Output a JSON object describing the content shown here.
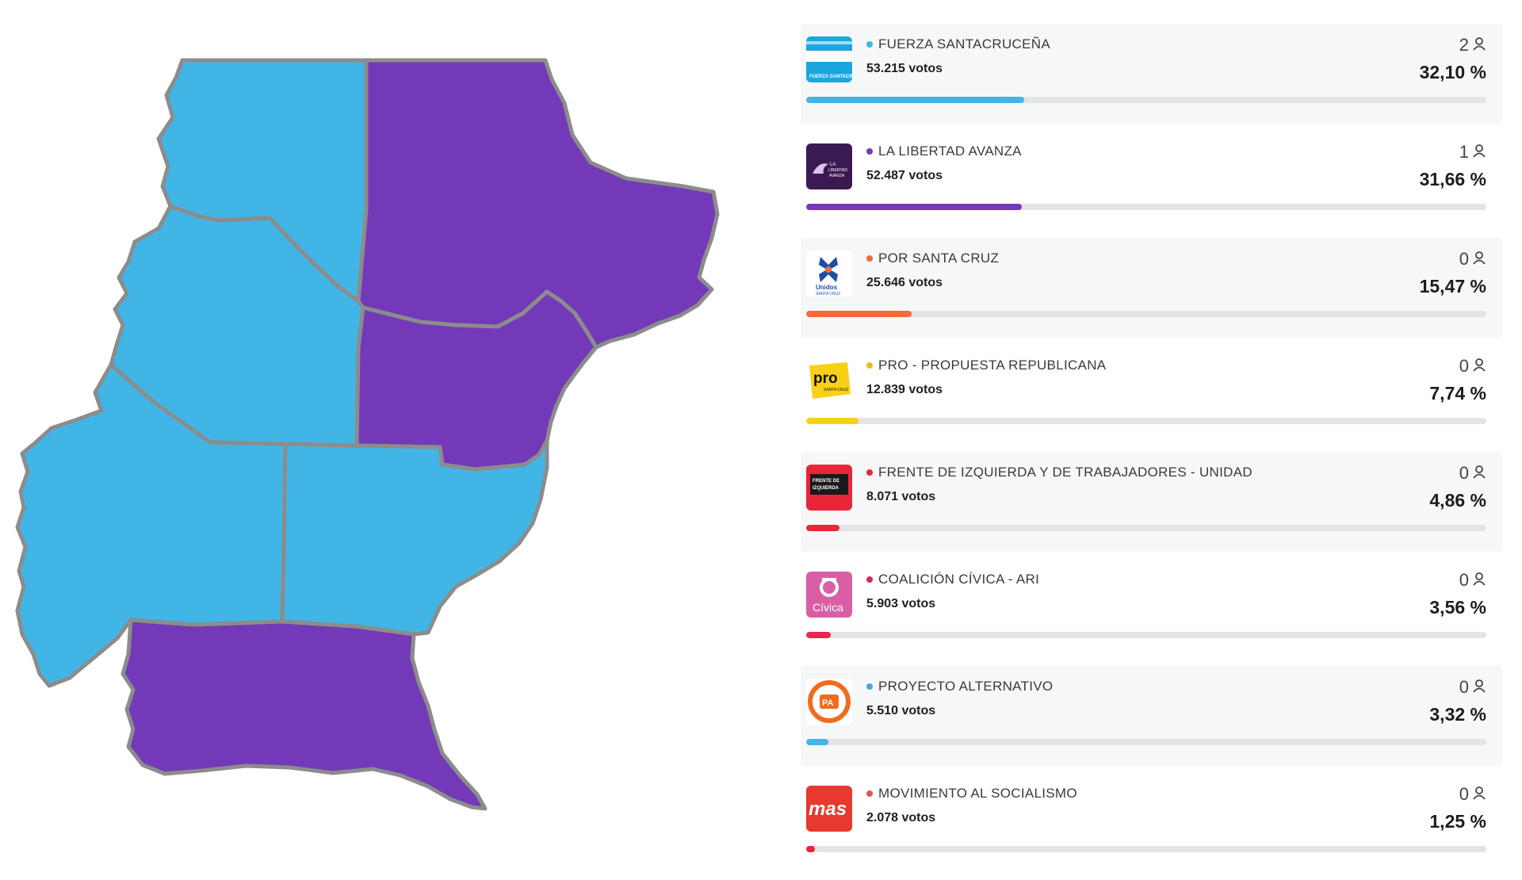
{
  "map": {
    "colors": {
      "fuerza": "#41b6e6",
      "libertad": "#7439b8",
      "border": "#8c8c8c"
    },
    "departments": [
      {
        "key": "lago-buenos-aires",
        "winner": "fuerza"
      },
      {
        "key": "deseado",
        "winner": "libertad"
      },
      {
        "key": "rio-chico",
        "winner": "fuerza"
      },
      {
        "key": "magallanes",
        "winner": "libertad"
      },
      {
        "key": "lago-argentino",
        "winner": "fuerza"
      },
      {
        "key": "corpen-aike",
        "winner": "fuerza"
      },
      {
        "key": "guer-aike",
        "winner": "libertad"
      }
    ]
  },
  "results": [
    {
      "name": "FUERZA SANTACRUCEÑA",
      "votes": "53.215 votos",
      "seats": "2",
      "pct": "32,10 %",
      "share": 32.1,
      "color": "#41b6e6",
      "dot": "#41b6e6",
      "logo_icon": "fuerza-santacrucena-flag-logo",
      "logo_text": "FUERZA SANTACRUCEÑA",
      "shade": true
    },
    {
      "name": "LA LIBERTAD AVANZA",
      "votes": "52.487 votos",
      "seats": "1",
      "pct": "31,66 %",
      "share": 31.66,
      "color": "#7439b8",
      "dot": "#7439b8",
      "logo_icon": "la-libertad-avanza-lion-logo",
      "logo_text": "LA LIBERTAD AVANZA",
      "shade": false
    },
    {
      "name": "POR SANTA CRUZ",
      "votes": "25.646 votos",
      "seats": "0",
      "pct": "15,47 %",
      "share": 15.47,
      "color": "#f26b3a",
      "dot": "#f26b3a",
      "logo_icon": "unidos-santa-cruz-logo",
      "logo_text": "Unidos SANTA CRUZ",
      "shade": true
    },
    {
      "name": "PRO - PROPUESTA REPUBLICANA",
      "votes": "12.839 votos",
      "seats": "0",
      "pct": "7,74 %",
      "share": 7.74,
      "color": "#f8d117",
      "dot": "#e6c01a",
      "logo_icon": "pro-santa-cruz-logo",
      "logo_text": "pro SANTA CRUZ",
      "shade": false
    },
    {
      "name": "FRENTE DE IZQUIERDA Y DE TRABAJADORES - UNIDAD",
      "votes": "8.071 votos",
      "seats": "0",
      "pct": "4,86 %",
      "share": 4.86,
      "color": "#e8263a",
      "dot": "#e8263a",
      "logo_icon": "frente-de-izquierda-logo",
      "logo_text": "FRENTE DE IZQUIERDA",
      "shade": true
    },
    {
      "name": "COALICIÓN CÍVICA - ARI",
      "votes": "5.903 votos",
      "seats": "0",
      "pct": "3,56 %",
      "share": 3.56,
      "color": "#e8264f",
      "dot": "#d92665",
      "logo_icon": "coalicion-civica-logo",
      "logo_text": "Cívica",
      "shade": false
    },
    {
      "name": "PROYECTO ALTERNATIVO",
      "votes": "5.510 votos",
      "seats": "0",
      "pct": "3,32 %",
      "share": 3.32,
      "color": "#41b6e6",
      "dot": "#41a8d9",
      "logo_icon": "proyecto-alternativo-logo",
      "logo_text": "PA",
      "shade": true
    },
    {
      "name": "MOVIMIENTO AL SOCIALISMO",
      "votes": "2.078 votos",
      "seats": "0",
      "pct": "1,25 %",
      "share": 1.25,
      "color": "#e8263a",
      "dot": "#e0574f",
      "logo_icon": "mas-logo",
      "logo_text": "mas",
      "shade": false
    }
  ]
}
